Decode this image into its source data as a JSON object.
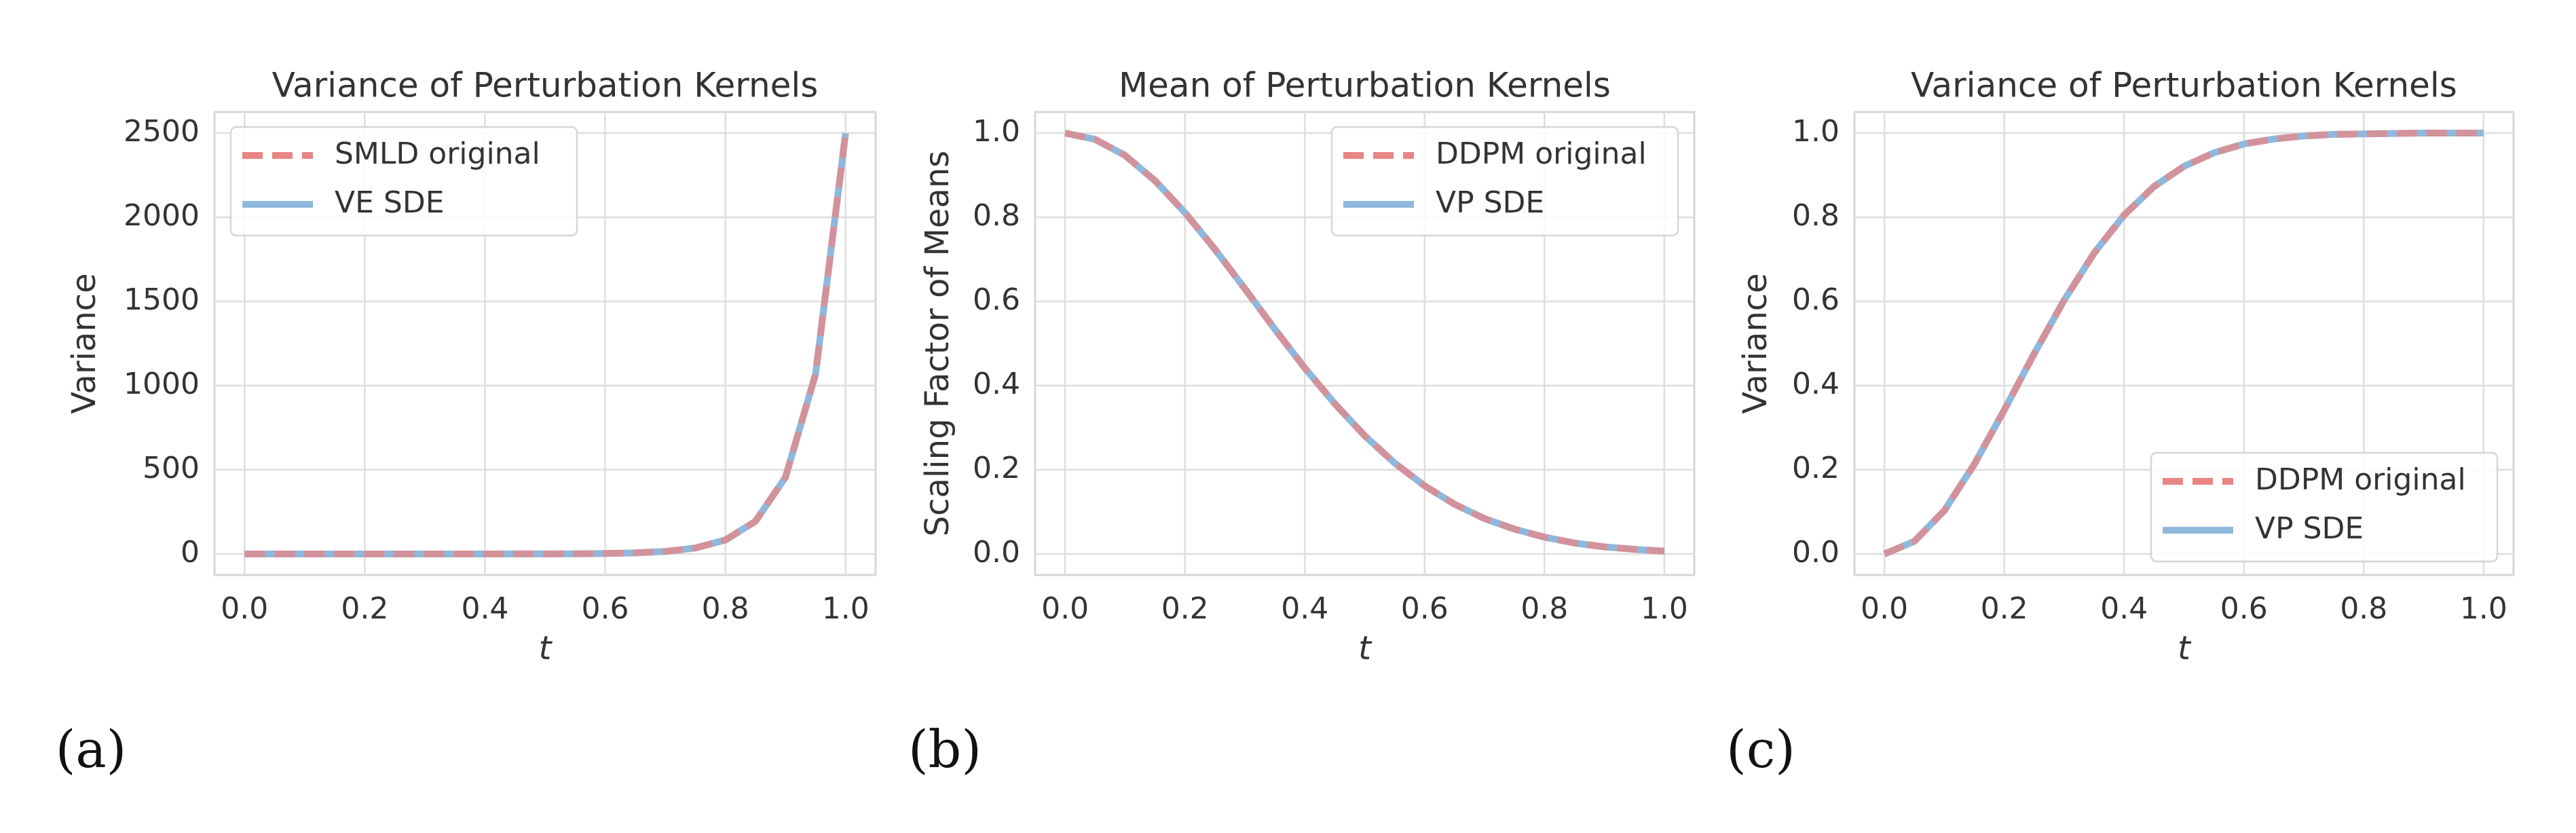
{
  "chart_data": [
    {
      "type": "line",
      "title": "Variance of Perturbation Kernels",
      "xlabel": "t",
      "ylabel": "Variance",
      "label": "(a)",
      "x": [
        0,
        0.05,
        0.1,
        0.15,
        0.2,
        0.25,
        0.3,
        0.35,
        0.4,
        0.45,
        0.5,
        0.55,
        0.6,
        0.65,
        0.7,
        0.75,
        0.8,
        0.85,
        0.9,
        0.95,
        1.0
      ],
      "series": [
        {
          "name": "SMLD original",
          "color": "#e88585",
          "style": "dashed",
          "values": [
            0.0001,
            0.00023,
            0.00055,
            0.0013,
            0.003,
            0.0071,
            0.017,
            0.039,
            0.091,
            0.21,
            0.5,
            1.17,
            2.74,
            6.44,
            15.0,
            35.4,
            82.8,
            194,
            456,
            1068,
            2500
          ]
        },
        {
          "name": "VE SDE",
          "color": "#8fb8dc",
          "style": "solid",
          "values": [
            0.0001,
            0.00023,
            0.00055,
            0.0013,
            0.003,
            0.0071,
            0.017,
            0.039,
            0.091,
            0.21,
            0.5,
            1.17,
            2.74,
            6.44,
            15.0,
            35.4,
            82.8,
            194,
            456,
            1068,
            2500
          ]
        }
      ],
      "xlim": [
        -0.05,
        1.05
      ],
      "ylim": [
        -125,
        2625
      ],
      "xticks": [
        {
          "value": 0,
          "label": "0.0"
        },
        0.2,
        0.4,
        0.6,
        0.8,
        {
          "value": 1,
          "label": "1.0"
        }
      ],
      "yticks": [
        0,
        500,
        1000,
        1500,
        2000,
        2500
      ],
      "grid": true,
      "legend": "upper left"
    },
    {
      "type": "line",
      "title": "Mean of Perturbation Kernels",
      "xlabel": "t",
      "ylabel": "Scaling Factor of Means",
      "label": "(b)",
      "x": [
        0,
        0.05,
        0.1,
        0.15,
        0.2,
        0.25,
        0.3,
        0.35,
        0.4,
        0.45,
        0.5,
        0.55,
        0.6,
        0.65,
        0.7,
        0.75,
        0.8,
        0.85,
        0.9,
        0.95,
        1.0
      ],
      "series": [
        {
          "name": "DDPM original",
          "color": "#e88585",
          "style": "dashed",
          "values": [
            1,
            0.985,
            0.947,
            0.887,
            0.811,
            0.724,
            0.63,
            0.534,
            0.442,
            0.357,
            0.281,
            0.216,
            0.162,
            0.118,
            0.084,
            0.059,
            0.04,
            0.026,
            0.017,
            0.011,
            0.007
          ]
        },
        {
          "name": "VP SDE",
          "color": "#8fb8dc",
          "style": "solid",
          "values": [
            1,
            0.985,
            0.947,
            0.887,
            0.811,
            0.724,
            0.63,
            0.534,
            0.442,
            0.357,
            0.281,
            0.216,
            0.162,
            0.118,
            0.084,
            0.059,
            0.04,
            0.026,
            0.017,
            0.011,
            0.007
          ]
        }
      ],
      "xlim": [
        -0.05,
        1.05
      ],
      "ylim": [
        -0.05,
        1.05
      ],
      "xticks": [
        {
          "value": 0,
          "label": "0.0"
        },
        0.2,
        0.4,
        0.6,
        0.8,
        {
          "value": 1,
          "label": "1.0"
        }
      ],
      "yticks": [
        {
          "value": 0,
          "label": "0.0"
        },
        0.2,
        0.4,
        0.6,
        0.8,
        {
          "value": 1,
          "label": "1.0"
        }
      ],
      "grid": true,
      "legend": "upper right"
    },
    {
      "type": "line",
      "title": "Variance of Perturbation Kernels",
      "xlabel": "t",
      "ylabel": "Variance",
      "label": "(c)",
      "x": [
        0,
        0.05,
        0.1,
        0.15,
        0.2,
        0.25,
        0.3,
        0.35,
        0.4,
        0.45,
        0.5,
        0.55,
        0.6,
        0.65,
        0.7,
        0.75,
        0.8,
        0.85,
        0.9,
        0.95,
        1.0
      ],
      "series": [
        {
          "name": "DDPM original",
          "color": "#e88585",
          "style": "dashed",
          "values": [
            0,
            0.03,
            0.103,
            0.213,
            0.342,
            0.476,
            0.603,
            0.715,
            0.805,
            0.873,
            0.921,
            0.953,
            0.974,
            0.986,
            0.993,
            0.997,
            0.998,
            0.999,
            1,
            1,
            1
          ]
        },
        {
          "name": "VP SDE",
          "color": "#8fb8dc",
          "style": "solid",
          "values": [
            0,
            0.03,
            0.103,
            0.213,
            0.342,
            0.476,
            0.603,
            0.715,
            0.805,
            0.873,
            0.921,
            0.953,
            0.974,
            0.986,
            0.993,
            0.997,
            0.998,
            0.999,
            1,
            1,
            1
          ]
        }
      ],
      "xlim": [
        -0.05,
        1.05
      ],
      "ylim": [
        -0.05,
        1.05
      ],
      "xticks": [
        {
          "value": 0,
          "label": "0.0"
        },
        0.2,
        0.4,
        0.6,
        0.8,
        {
          "value": 1,
          "label": "1.0"
        }
      ],
      "yticks": [
        {
          "value": 0,
          "label": "0.0"
        },
        0.2,
        0.4,
        0.6,
        0.8,
        {
          "value": 1,
          "label": "1.0"
        }
      ],
      "grid": true,
      "legend": "lower right"
    }
  ]
}
